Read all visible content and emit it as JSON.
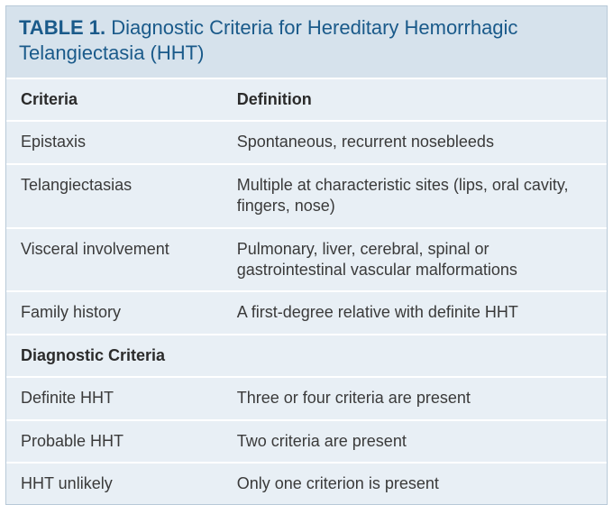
{
  "colors": {
    "title_bg": "#d6e2ec",
    "title_text": "#1a5a8a",
    "body_bg": "#e8eff5",
    "divider": "#ffffff",
    "body_text": "#3a3a3a",
    "border": "#b8c9d8"
  },
  "title": {
    "label": "TABLE 1.",
    "text": "Diagnostic Criteria for Hereditary Hemorrhagic Telangiectasia (HHT)"
  },
  "headers": {
    "col1": "Criteria",
    "col2": "Definition"
  },
  "rows1": [
    {
      "c1": "Epistaxis",
      "c2": "Spontaneous, recurrent nosebleeds"
    },
    {
      "c1": "Telangiectasias",
      "c2": "Multiple at characteristic sites (lips, oral cavity, fingers, nose)"
    },
    {
      "c1": "Visceral involvement",
      "c2": "Pulmonary, liver, cerebral, spinal or gastrointestinal vascular malformations"
    },
    {
      "c1": "Family history",
      "c2": "A first-degree relative with definite HHT"
    }
  ],
  "section2": "Diagnostic Criteria",
  "rows2": [
    {
      "c1": "Definite HHT",
      "c2": "Three or four criteria are present"
    },
    {
      "c1": "Probable HHT",
      "c2": "Two criteria are present"
    },
    {
      "c1": "HHT unlikely",
      "c2": "Only one criterion is present"
    }
  ],
  "typography": {
    "title_fontsize": 22,
    "body_fontsize": 18,
    "header_weight": "700",
    "row_weight": "400"
  },
  "layout": {
    "col1_width_pct": 36,
    "col2_width_pct": 64
  }
}
